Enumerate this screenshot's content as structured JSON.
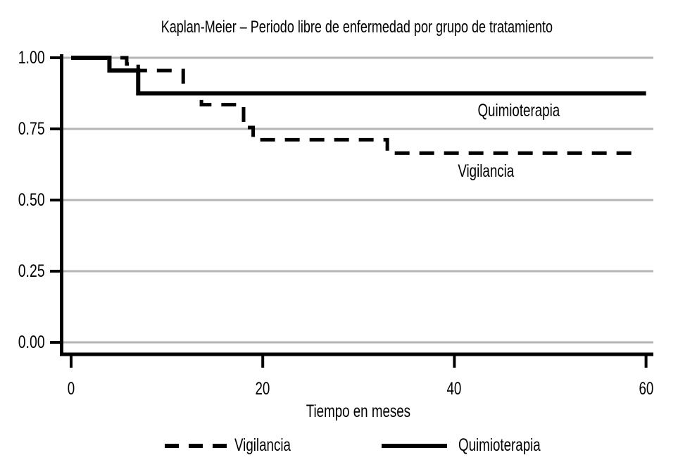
{
  "title": "Kaplan-Meier – Periodo libre de enfermedad por grupo de tratamiento",
  "x_axis_title": "Tiempo en meses",
  "legend": {
    "items": [
      {
        "label": "Vigilancia",
        "style": "dashed"
      },
      {
        "label": "Quimioterapia",
        "style": "solid"
      }
    ]
  },
  "chart_data": {
    "type": "line",
    "chart_kind": "kaplan-meier-step",
    "title": "Kaplan-Meier – Periodo libre de enfermedad por grupo de tratamiento",
    "xlabel": "Tiempo en meses",
    "ylabel": "",
    "xlim": [
      0,
      60
    ],
    "ylim": [
      0.0,
      1.0
    ],
    "grid": "horizontal-gridlines",
    "legend_position": "bottom",
    "x_ticks": [
      {
        "v": 0,
        "label": "0"
      },
      {
        "v": 20,
        "label": "20"
      },
      {
        "v": 40,
        "label": "40"
      },
      {
        "v": 60,
        "label": "60"
      }
    ],
    "y_ticks": [
      {
        "v": 1.0,
        "label": "1.00"
      },
      {
        "v": 0.75,
        "label": "0.75"
      },
      {
        "v": 0.5,
        "label": "0.50"
      },
      {
        "v": 0.25,
        "label": "0.25"
      },
      {
        "v": 0.0,
        "label": "0.00"
      }
    ],
    "series": [
      {
        "name": "Vigilancia",
        "line_style": "dashed",
        "color": "#000000",
        "end_x": 59,
        "steps": [
          [
            0,
            1.0
          ],
          [
            5.8,
            0.978
          ],
          [
            7,
            0.955
          ],
          [
            11.7,
            0.875
          ],
          [
            13.6,
            0.835
          ],
          [
            18,
            0.755
          ],
          [
            19,
            0.712
          ],
          [
            33,
            0.665
          ]
        ]
      },
      {
        "name": "Quimioterapia",
        "line_style": "solid",
        "color": "#000000",
        "end_x": 60,
        "steps": [
          [
            0,
            1.0
          ],
          [
            4,
            0.955
          ],
          [
            7,
            0.875
          ]
        ]
      }
    ],
    "annotations": [
      {
        "text": "Quimioterapia",
        "x": 46.7,
        "y": 0.81
      },
      {
        "text": "Vigilancia",
        "x": 43.3,
        "y": 0.6
      }
    ],
    "colors": {
      "curves": "#000000",
      "grid": "#b4b4b4",
      "axis": "#000000",
      "text": "#000000",
      "background": "#ffffff"
    }
  }
}
